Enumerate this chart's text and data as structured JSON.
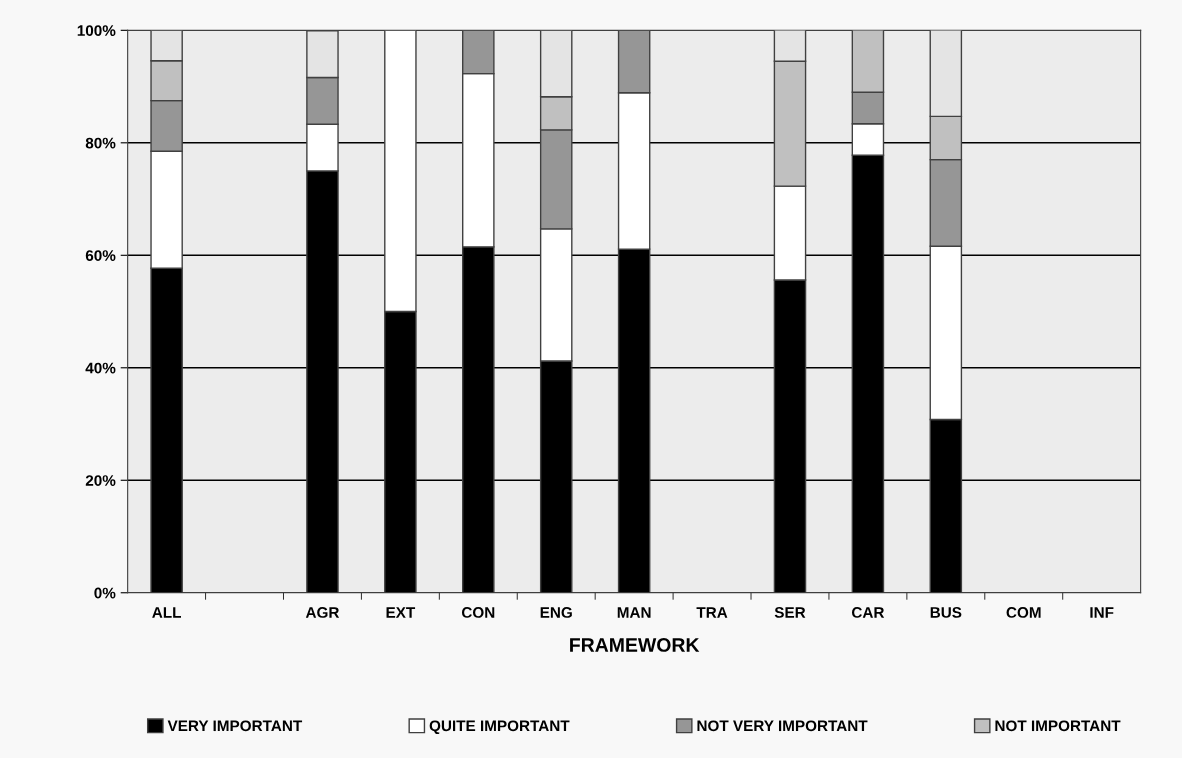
{
  "chart_data": {
    "type": "bar",
    "stacked": true,
    "xlabel": "FRAMEWORK",
    "categories": [
      "ALL",
      null,
      "AGR",
      "EXT",
      "CON",
      "ENG",
      "MAN",
      "TRA",
      "SER",
      "CAR",
      "BUS",
      "COM",
      "INF"
    ],
    "series": [
      {
        "name": "VERY IMPORTANT",
        "color": "#000000",
        "values": [
          57.7,
          null,
          75.0,
          50.0,
          61.5,
          41.2,
          61.1,
          null,
          55.6,
          77.8,
          30.8,
          null,
          null
        ]
      },
      {
        "name": "QUITE IMPORTANT",
        "color": "#ffffff",
        "values": [
          20.8,
          null,
          8.3,
          50.0,
          30.8,
          23.5,
          27.8,
          null,
          16.7,
          5.6,
          30.8,
          null,
          null
        ]
      },
      {
        "name": "NOT VERY IMPORTANT",
        "color": "#969696",
        "values": [
          9.0,
          null,
          8.3,
          null,
          7.7,
          17.6,
          11.1,
          null,
          null,
          5.6,
          15.4,
          null,
          null
        ]
      },
      {
        "name": "NOT IMPORTANT",
        "color": "#c0c0c0",
        "values": [
          7.1,
          null,
          null,
          null,
          null,
          5.9,
          null,
          null,
          22.2,
          11.1,
          7.7,
          null,
          null
        ]
      },
      {
        "color": "#e4e4e4",
        "values": [
          5.4,
          null,
          8.3,
          null,
          null,
          11.8,
          null,
          null,
          5.6,
          null,
          15.4,
          null,
          null
        ]
      }
    ],
    "ylim": [
      0,
      100
    ],
    "yticks": [
      {
        "value": 0,
        "label": "0%"
      },
      {
        "value": 20,
        "label": "20%"
      },
      {
        "value": 40,
        "label": "40%"
      },
      {
        "value": 60,
        "label": "60%"
      },
      {
        "value": 80,
        "label": "80%"
      },
      {
        "value": 100,
        "label": "100%"
      }
    ],
    "grid": "y",
    "legend": "bottom"
  }
}
